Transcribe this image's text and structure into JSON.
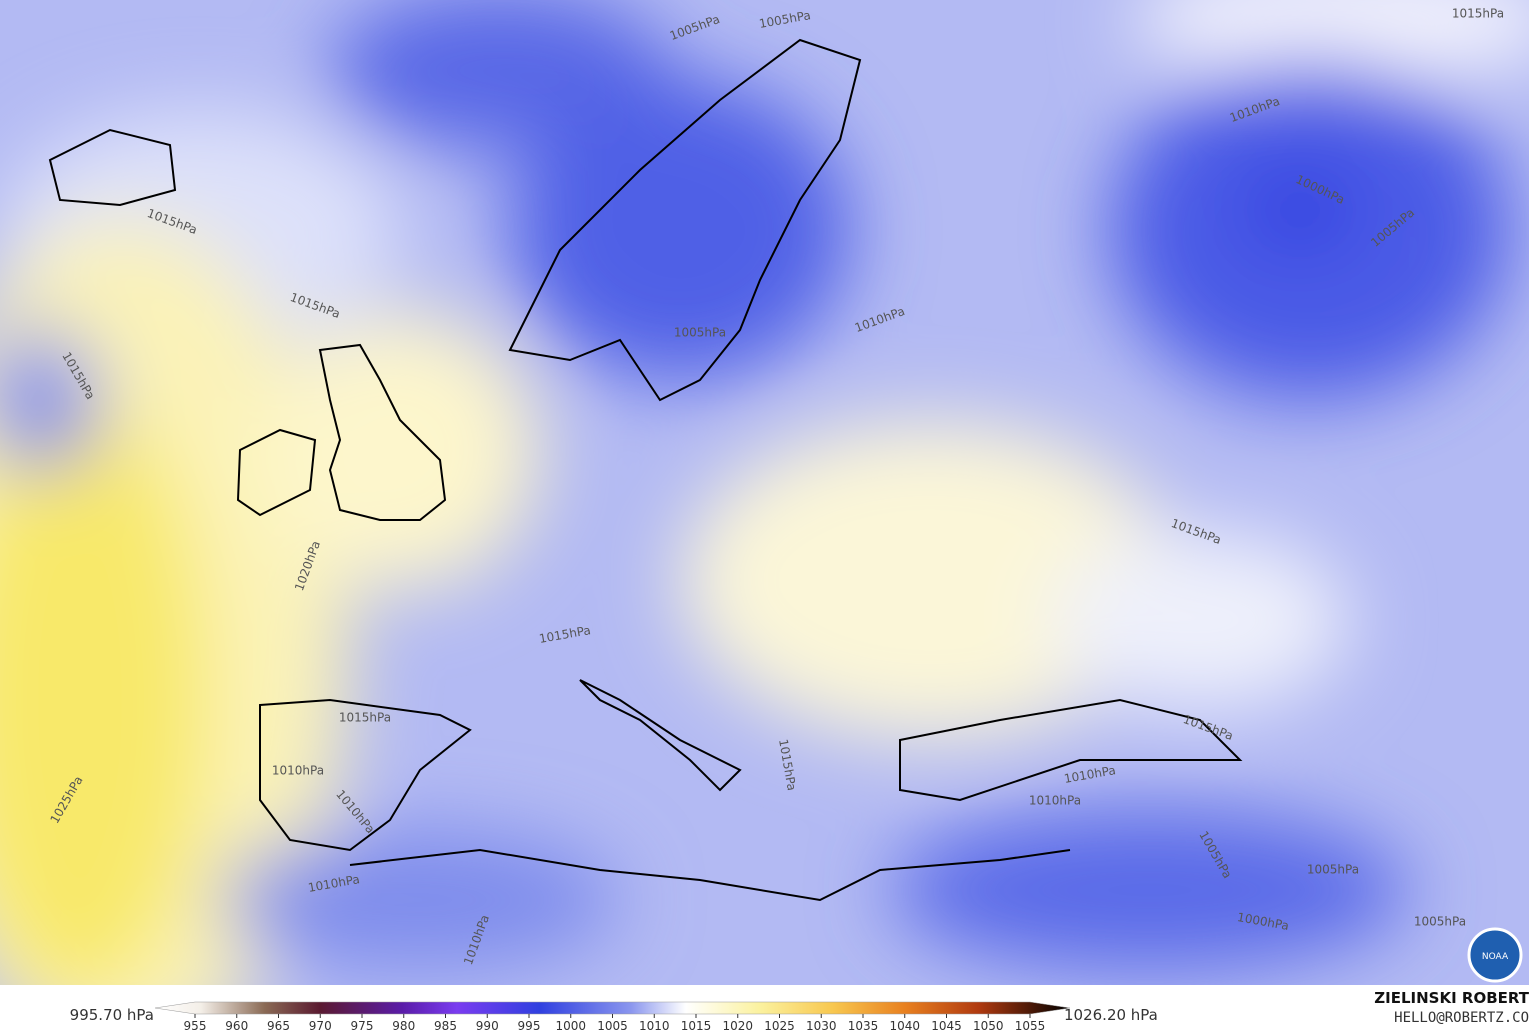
{
  "map": {
    "contour_labels": [
      "1005hPa",
      "1005hPa",
      "1015hPa",
      "1010hPa",
      "1000hPa",
      "1005hPa",
      "1015hPa",
      "1015hPa",
      "1015hPa",
      "1005hPa",
      "1010hPa",
      "1015hPa",
      "1020hPa",
      "1015hPa",
      "1015hPa",
      "1015hPa",
      "1010hPa",
      "1010hPa",
      "1015hPa",
      "1010hPa",
      "1010hPa",
      "1025hPa",
      "1005hPa",
      "1005hPa",
      "1010hPa",
      "1000hPa",
      "1005hPa",
      "1010hPa"
    ],
    "colorbar": {
      "min_label": "995.70 hPa",
      "max_label": "1026.20 hPa",
      "ticks": [
        955,
        960,
        965,
        970,
        975,
        980,
        985,
        990,
        995,
        1000,
        1005,
        1010,
        1015,
        1020,
        1025,
        1030,
        1035,
        1040,
        1045,
        1050,
        1055
      ]
    },
    "credit": {
      "name": "ZIELINSKI ROBERT",
      "site": "HELLO@ROBERTZ.CO",
      "logo": "NOAA"
    }
  }
}
